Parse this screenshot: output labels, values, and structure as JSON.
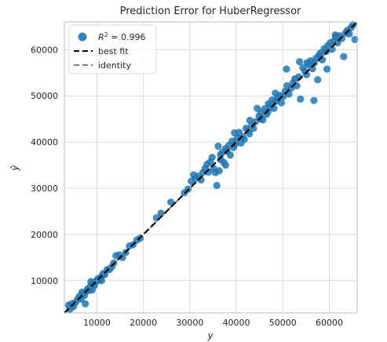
{
  "chart_data": {
    "type": "scatter",
    "title": "Prediction Error for HuberRegressor",
    "xlabel": "y",
    "ylabel": "ŷ",
    "xlim": [
      3000,
      66000
    ],
    "ylim": [
      3000,
      66000
    ],
    "xticks": [
      10000,
      20000,
      30000,
      40000,
      50000,
      60000
    ],
    "yticks": [
      10000,
      20000,
      30000,
      40000,
      50000,
      60000
    ],
    "grid": true,
    "legend_position": "top-left",
    "legend": {
      "r2_label": "R² = 0.996",
      "r2_prefix": "R",
      "r2_sup": "2",
      "r2_suffix": " = 0.996",
      "best_fit_label": "best fit",
      "identity_label": "identity"
    },
    "colors": {
      "points": "#1f77b4",
      "best_fit": "#000000",
      "identity": "#808080",
      "grid": "#d9d9d9",
      "frame": "#bfbfbf"
    },
    "best_fit": [
      [
        3000,
        3000
      ],
      [
        66000,
        66000
      ]
    ],
    "identity": [
      [
        3000,
        3000
      ],
      [
        66000,
        66000
      ]
    ],
    "points": [
      [
        3900,
        4700
      ],
      [
        4200,
        3800
      ],
      [
        4600,
        5000
      ],
      [
        5000,
        4400
      ],
      [
        5400,
        5300
      ],
      [
        5800,
        5900
      ],
      [
        6200,
        6600
      ],
      [
        6600,
        6000
      ],
      [
        7000,
        7200
      ],
      [
        7300,
        6800
      ],
      [
        7700,
        7700
      ],
      [
        8000,
        8200
      ],
      [
        8300,
        7900
      ],
      [
        8600,
        8800
      ],
      [
        8900,
        9100
      ],
      [
        9200,
        9400
      ],
      [
        9500,
        9000
      ],
      [
        9800,
        9900
      ],
      [
        10200,
        10400
      ],
      [
        10500,
        10100
      ],
      [
        10900,
        10800
      ],
      [
        11300,
        11500
      ],
      [
        11700,
        11300
      ],
      [
        12200,
        12400
      ],
      [
        12700,
        12400
      ],
      [
        13200,
        13000
      ],
      [
        13600,
        13800
      ],
      [
        14100,
        15400
      ],
      [
        14800,
        15600
      ],
      [
        15500,
        15000
      ],
      [
        16200,
        16100
      ],
      [
        17000,
        17500
      ],
      [
        17800,
        17800
      ],
      [
        18600,
        18800
      ],
      [
        19300,
        19200
      ],
      [
        7500,
        5000
      ],
      [
        9000,
        8000
      ],
      [
        11000,
        10000
      ],
      [
        8700,
        9800
      ],
      [
        6800,
        7500
      ],
      [
        22800,
        23600
      ],
      [
        23800,
        24600
      ],
      [
        25900,
        27000
      ],
      [
        28800,
        29000
      ],
      [
        29600,
        29800
      ],
      [
        30300,
        31500
      ],
      [
        30800,
        32900
      ],
      [
        31200,
        32200
      ],
      [
        31800,
        32600
      ],
      [
        32400,
        31800
      ],
      [
        32800,
        33400
      ],
      [
        33300,
        34300
      ],
      [
        33700,
        35200
      ],
      [
        34000,
        33500
      ],
      [
        34400,
        35700
      ],
      [
        34800,
        36700
      ],
      [
        35100,
        34300
      ],
      [
        35500,
        33400
      ],
      [
        35800,
        30600
      ],
      [
        36100,
        39100
      ],
      [
        36300,
        33800
      ],
      [
        36600,
        36200
      ],
      [
        37000,
        37800
      ],
      [
        37300,
        35600
      ],
      [
        37700,
        38600
      ],
      [
        38000,
        38000
      ],
      [
        38400,
        39300
      ],
      [
        38700,
        37200
      ],
      [
        39100,
        40200
      ],
      [
        39400,
        38800
      ],
      [
        39800,
        39600
      ],
      [
        40200,
        40900
      ],
      [
        40600,
        42100
      ],
      [
        41000,
        39800
      ],
      [
        41300,
        41200
      ],
      [
        41700,
        40600
      ],
      [
        42100,
        43000
      ],
      [
        42500,
        42500
      ],
      [
        42900,
        44700
      ],
      [
        43300,
        43600
      ],
      [
        43700,
        43000
      ],
      [
        44100,
        44400
      ],
      [
        44500,
        47300
      ],
      [
        44900,
        45600
      ],
      [
        45300,
        46400
      ],
      [
        45700,
        44800
      ],
      [
        46100,
        47200
      ],
      [
        46500,
        46000
      ],
      [
        46900,
        48300
      ],
      [
        47300,
        47800
      ],
      [
        47700,
        49100
      ],
      [
        48100,
        47300
      ],
      [
        48500,
        48800
      ],
      [
        48900,
        49600
      ],
      [
        49300,
        50100
      ],
      [
        49700,
        48500
      ],
      [
        50100,
        49900
      ],
      [
        50500,
        51000
      ],
      [
        50900,
        52200
      ],
      [
        51300,
        50400
      ],
      [
        51800,
        51700
      ],
      [
        52200,
        52800
      ],
      [
        52600,
        53700
      ],
      [
        53000,
        52200
      ],
      [
        53400,
        54100
      ],
      [
        53800,
        49300
      ],
      [
        54300,
        56100
      ],
      [
        54700,
        55400
      ],
      [
        55100,
        54600
      ],
      [
        55600,
        56700
      ],
      [
        56000,
        57600
      ],
      [
        56400,
        55900
      ],
      [
        56800,
        57200
      ],
      [
        57200,
        58200
      ],
      [
        57500,
        53500
      ],
      [
        57800,
        58800
      ],
      [
        58100,
        59300
      ],
      [
        58500,
        57800
      ],
      [
        58900,
        60200
      ],
      [
        59300,
        59600
      ],
      [
        59700,
        60900
      ],
      [
        60200,
        61500
      ],
      [
        60600,
        60100
      ],
      [
        61000,
        61900
      ],
      [
        61400,
        62700
      ],
      [
        61800,
        61500
      ],
      [
        62200,
        63000
      ],
      [
        62700,
        62400
      ],
      [
        63100,
        58500
      ],
      [
        63500,
        63600
      ],
      [
        63900,
        64200
      ],
      [
        64300,
        63400
      ],
      [
        64700,
        64800
      ],
      [
        65100,
        65400
      ],
      [
        65500,
        62200
      ],
      [
        56700,
        49000
      ],
      [
        50800,
        55800
      ],
      [
        45200,
        45000
      ],
      [
        53600,
        57400
      ],
      [
        59500,
        55800
      ],
      [
        61300,
        63200
      ],
      [
        55200,
        57200
      ],
      [
        42800,
        41800
      ],
      [
        36600,
        37300
      ],
      [
        39600,
        42000
      ],
      [
        46800,
        46600
      ],
      [
        48400,
        50600
      ],
      [
        37700,
        35000
      ]
    ]
  }
}
